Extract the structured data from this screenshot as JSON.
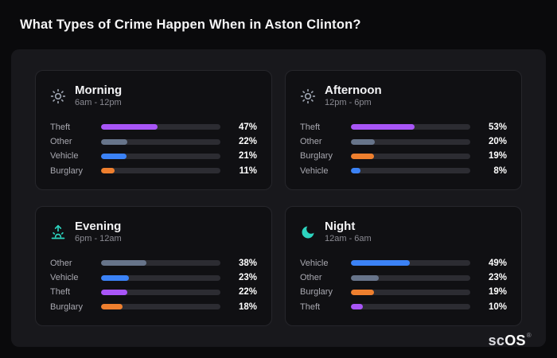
{
  "page": {
    "title": "What Types of Crime Happen When in Aston Clinton?",
    "brand": {
      "prefix": "sc",
      "suffix": "OS",
      "mark": "®"
    }
  },
  "colors": {
    "Theft": "#a855f7",
    "Other": "#67748a",
    "Vehicle": "#3b82f6",
    "Burglary": "#ee7f2e",
    "track": "#2c2c32",
    "icon_gray": "#9ca3af",
    "icon_teal": "#2dd4bf"
  },
  "chart_data": [
    {
      "type": "bar",
      "title": "Morning",
      "subtitle": "6am - 12pm",
      "icon": "sun-icon",
      "categories": [
        "Theft",
        "Other",
        "Vehicle",
        "Burglary"
      ],
      "values": [
        47,
        22,
        21,
        11
      ],
      "unit": "%",
      "xlim": [
        0,
        100
      ],
      "grid": false,
      "legend": "none"
    },
    {
      "type": "bar",
      "title": "Afternoon",
      "subtitle": "12pm - 6pm",
      "icon": "sun-icon",
      "categories": [
        "Theft",
        "Other",
        "Burglary",
        "Vehicle"
      ],
      "values": [
        53,
        20,
        19,
        8
      ],
      "unit": "%",
      "xlim": [
        0,
        100
      ],
      "grid": false,
      "legend": "none"
    },
    {
      "type": "bar",
      "title": "Evening",
      "subtitle": "6pm - 12am",
      "icon": "sunset-icon",
      "categories": [
        "Other",
        "Vehicle",
        "Theft",
        "Burglary"
      ],
      "values": [
        38,
        23,
        22,
        18
      ],
      "unit": "%",
      "xlim": [
        0,
        100
      ],
      "grid": false,
      "legend": "none"
    },
    {
      "type": "bar",
      "title": "Night",
      "subtitle": "12am - 6am",
      "icon": "moon-icon",
      "categories": [
        "Vehicle",
        "Other",
        "Burglary",
        "Theft"
      ],
      "values": [
        49,
        23,
        19,
        10
      ],
      "unit": "%",
      "xlim": [
        0,
        100
      ],
      "grid": false,
      "legend": "none"
    }
  ]
}
